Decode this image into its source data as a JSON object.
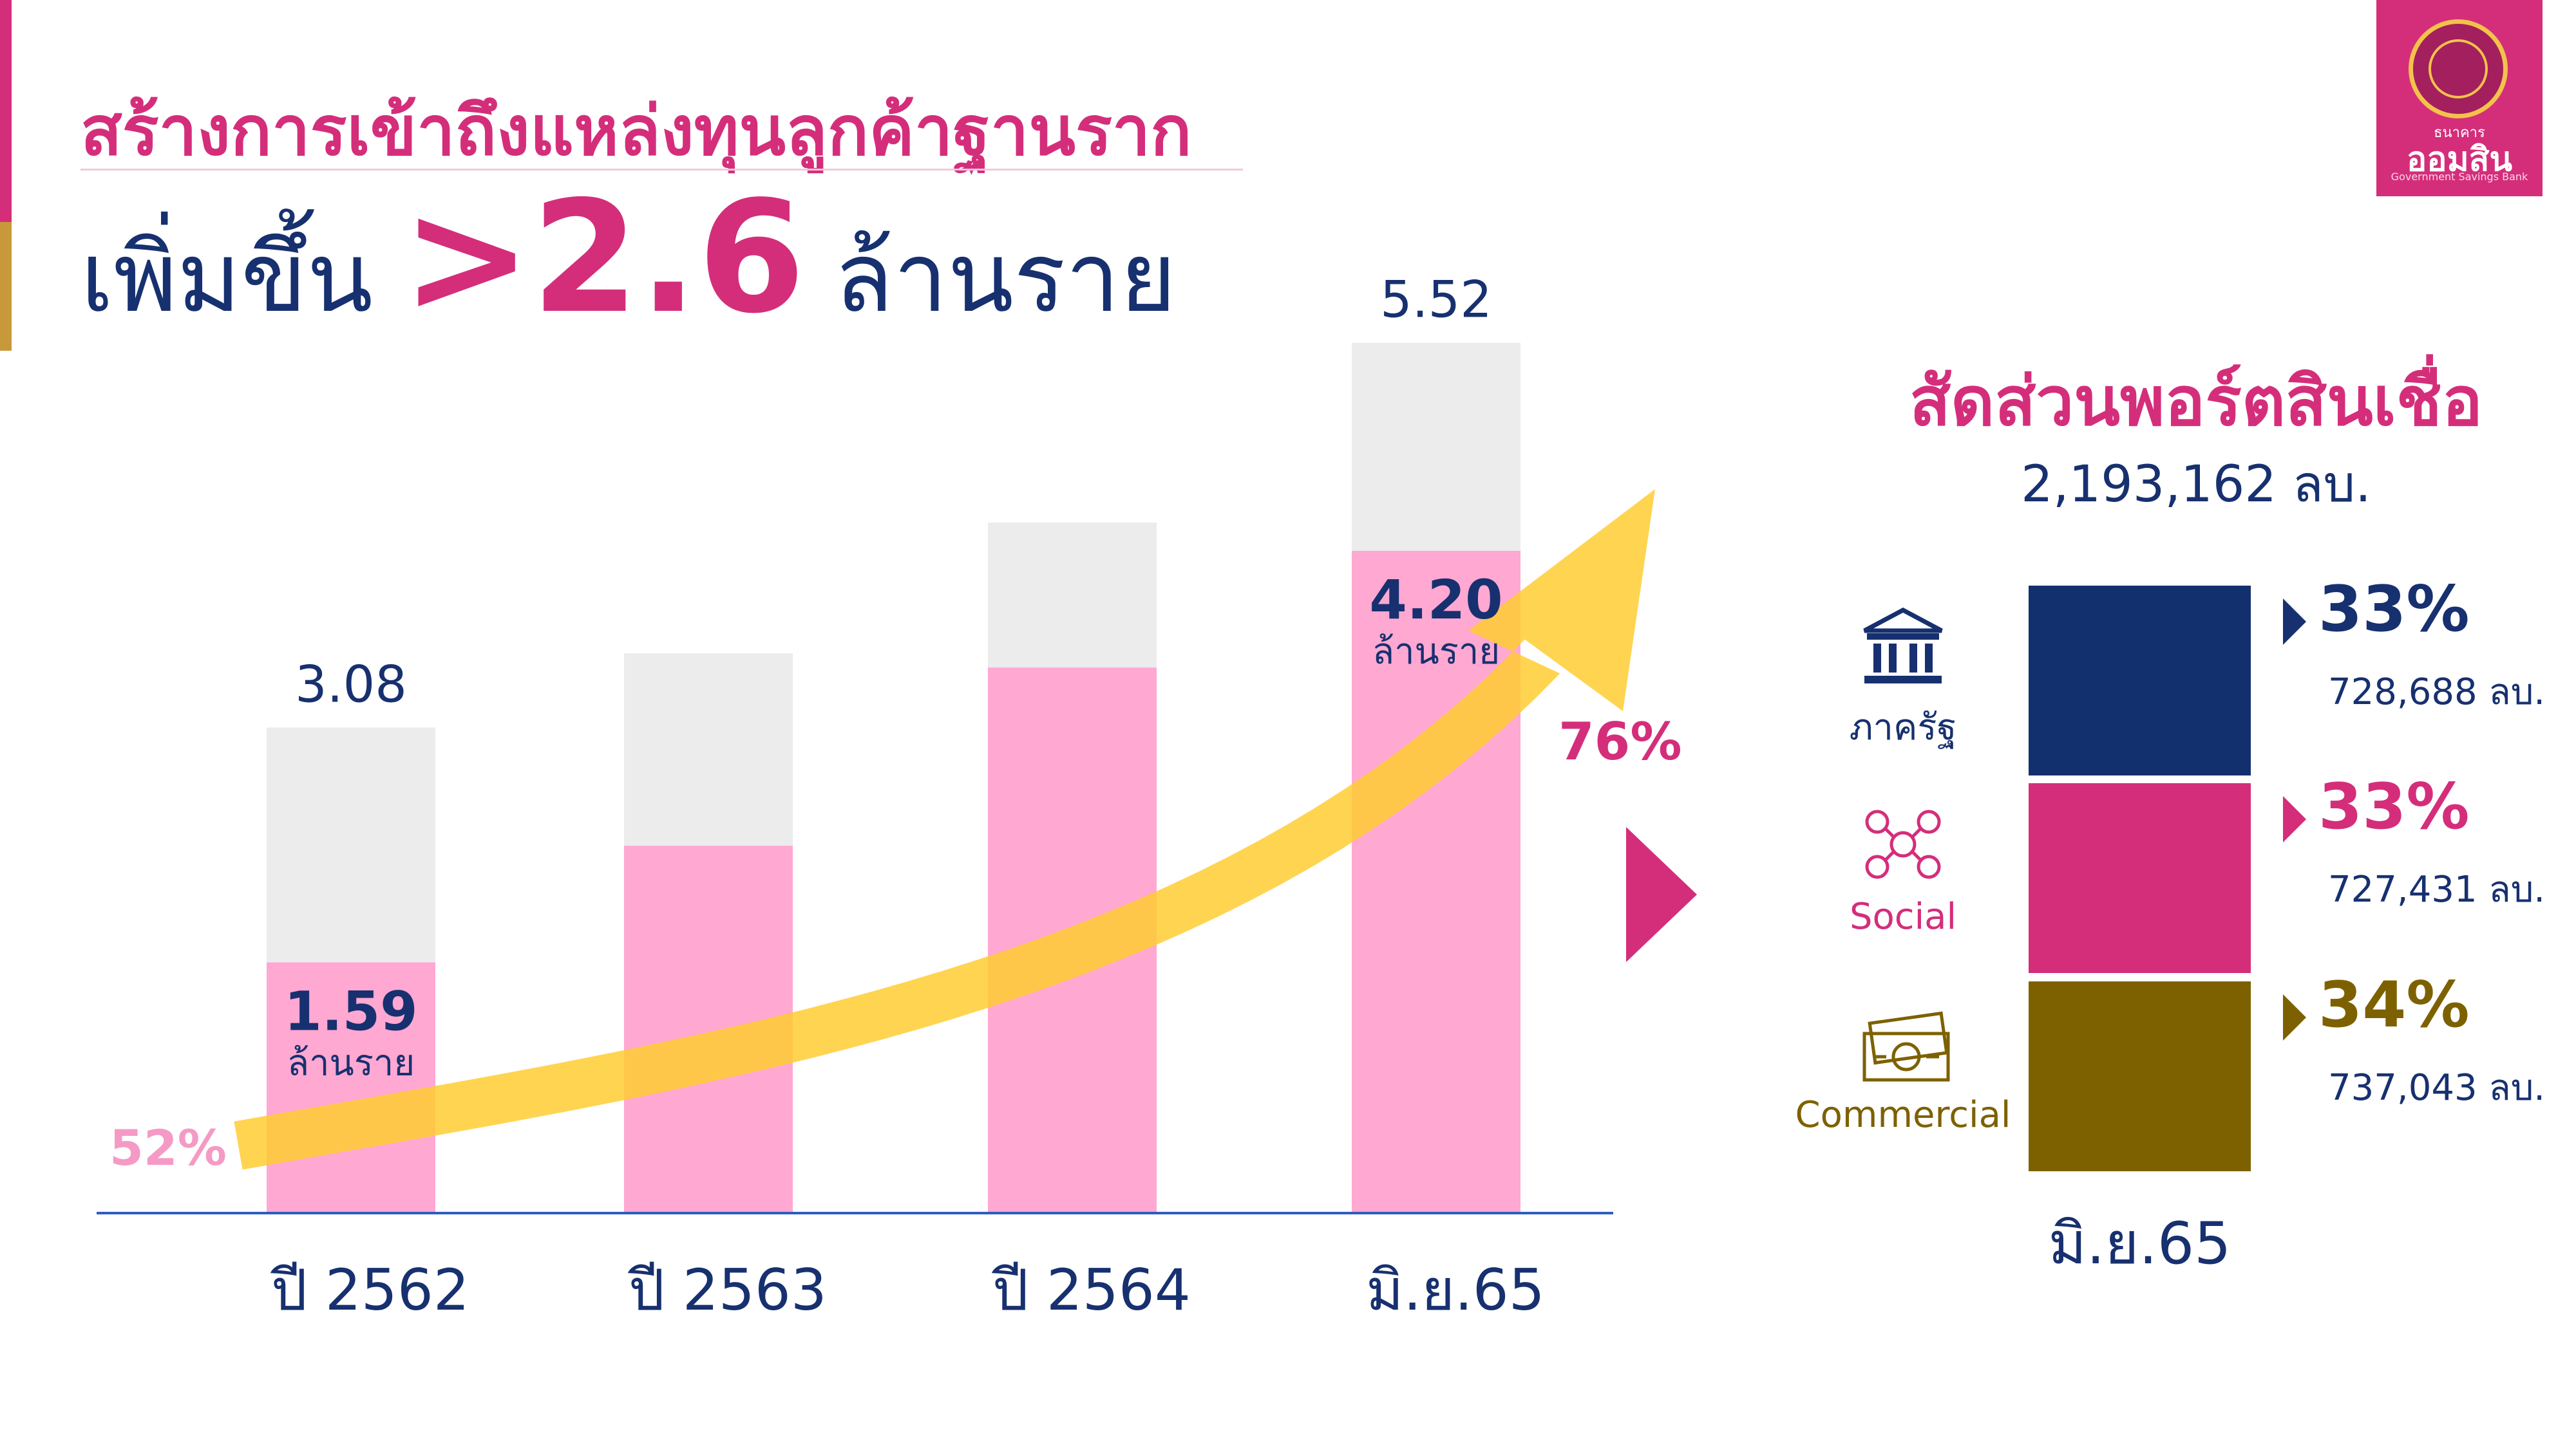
{
  "header": {
    "title_line1": "สร้างการเข้าถึงแหล่งทุนลูกค้าฐานราก",
    "title_line2_prefix": "เพิ่มขึ้น",
    "title_line2_highlight": ">2.6",
    "title_line2_suffix": "ล้านราย"
  },
  "logo": {
    "small_text": "ธนาคาร",
    "name": "ออมสิน",
    "english": "Government Savings Bank"
  },
  "chart_data": [
    {
      "type": "bar",
      "stacked": true,
      "categories": [
        "ปี 2562",
        "ปี 2563",
        "ปี 2564",
        "มิ.ย.65"
      ],
      "totals": [
        3.08,
        3.55,
        4.38,
        5.52
      ],
      "total_labels": [
        "3.08",
        "",
        "",
        "5.52"
      ],
      "series": [
        {
          "values": [
            1.59,
            2.33,
            3.46,
            4.2
          ],
          "color": "#fea8d2"
        },
        {
          "values": [
            1.49,
            1.22,
            0.92,
            1.32
          ],
          "color": "#ececec"
        }
      ],
      "highlight_labels": [
        {
          "index": 0,
          "value": "1.59",
          "unit": "ล้านราย"
        },
        {
          "index": 3,
          "value": "4.20",
          "unit": "ล้านราย"
        }
      ],
      "trend_start_label": "52%",
      "trend_end_label": "76%",
      "ylim": [
        0,
        6
      ],
      "colors": {
        "growth": "#fea8d2",
        "base": "#ececec",
        "arrow": "#ffcc33",
        "start_pct": "#f49ac5",
        "end_pct": "#d42e7b",
        "axis": "#2f5ec0"
      }
    },
    {
      "type": "bar",
      "stacked": true,
      "title": "สัดส่วนพอร์ตสินเชื่อ",
      "total": "2,193,162 ลบ.",
      "category": "มิ.ย.65",
      "segments": [
        {
          "name": "ภาครัฐ",
          "percent": 33,
          "percent_label": "33%",
          "amount_label": "728,688 ลบ.",
          "color": "#13306e",
          "icon": "government-building-icon"
        },
        {
          "name": "Social",
          "percent": 33,
          "percent_label": "33%",
          "amount_label": "727,431 ลบ.",
          "color": "#d42e7b",
          "icon": "social-network-icon"
        },
        {
          "name": "Commercial",
          "percent": 34,
          "percent_label": "34%",
          "amount_label": "737,043 ลบ.",
          "color": "#7d6100",
          "icon": "banknote-icon"
        }
      ]
    }
  ]
}
